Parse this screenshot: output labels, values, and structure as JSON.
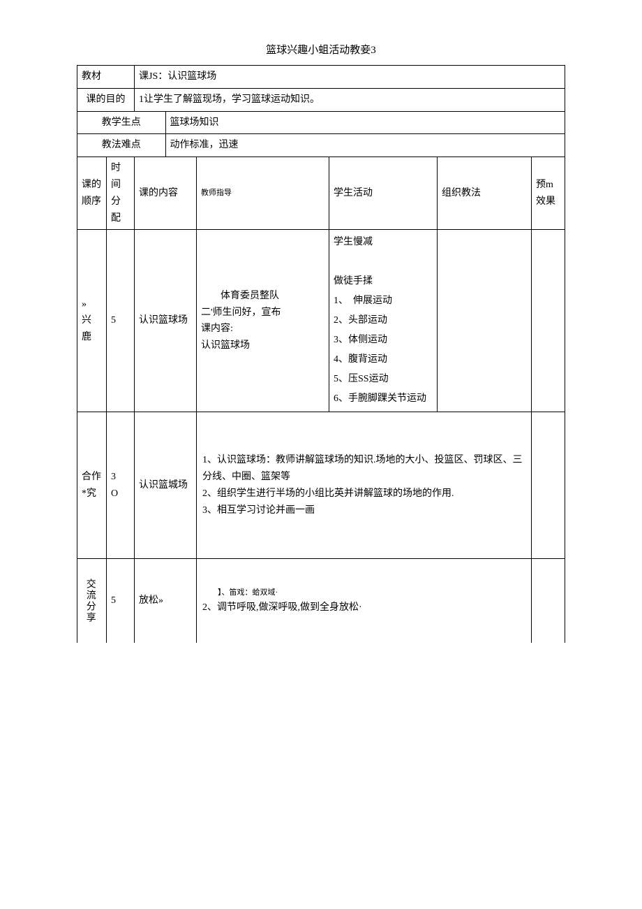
{
  "doc_title": "篮球兴趣小蛆活动教妾3",
  "header_rows": {
    "r1_label": "教材",
    "r1_value": "课JS：认识篮球场",
    "r2_label": "课的目的",
    "r2_value": "1让学生了解篮现场，学习篮球运动知识。",
    "r3_label": "教学生点",
    "r3_value": "篮球场知识",
    "r4_label": "教法难点",
    "r4_value": "动作标准，迅速"
  },
  "columns": {
    "c1": "课的顺序",
    "c2": "时间分配",
    "c3": "课的内容",
    "c4": "教师指导",
    "c5": "学生活动",
    "c6": "组织教法",
    "c7": "预m效果"
  },
  "rows": [
    {
      "seq": "»\n兴\n鹿",
      "time": "5",
      "content": "认识篮球场",
      "guide_l1": "体育委员整队",
      "guide_l2": "二'师生问好，宣布",
      "guide_l3": "课内容:",
      "guide_l4": "认识篮球场",
      "activity_l1": "学生慢减",
      "activity_l2": "做徒手揉",
      "activity_l3": "1、　伸展运动",
      "activity_l4": "2、头部运动",
      "activity_l5": "3、体侧运动",
      "activity_l6": "4、腹背运动",
      "activity_l7": "5、压SS运动",
      "activity_l8": "6、手腕脚踝关节运动",
      "method": "",
      "effect": ""
    },
    {
      "seq": "合作*究",
      "time": "3\nO",
      "content": "认识篮城场",
      "merged_l1": "1、认识篮球场：教师讲解篮球场的知识.场地的大小、投篮区、罚球区、三分线、中圈、篮架等",
      "merged_l2": "2、组织学生进行半场的小组比英并讲解篮球的场地的作用.",
      "merged_l3": "3、相互学习讨论并画一画",
      "effect": ""
    },
    {
      "seq": "交流分享",
      "time": "5",
      "content": "放松»",
      "merged_l1": "】、笛戏：蛤双域·",
      "merged_l2": "2、调节呼吸,做深呼吸,做到全身放松·",
      "effect": ""
    }
  ]
}
